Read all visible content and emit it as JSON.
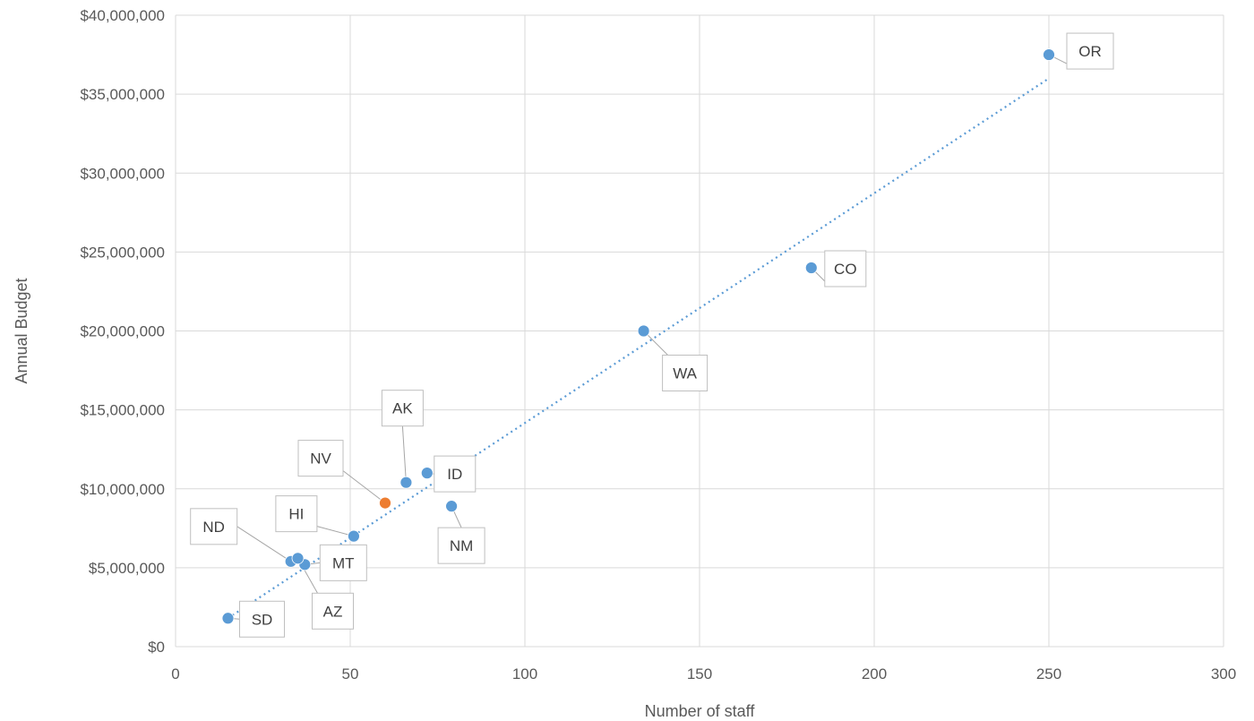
{
  "chart_data": {
    "type": "scatter",
    "xlabel": "Number of staff",
    "ylabel": "Annual Budget",
    "xlim": [
      0,
      300
    ],
    "ylim": [
      0,
      40000000
    ],
    "x_ticks": [
      "0",
      "50",
      "100",
      "150",
      "200",
      "250",
      "300"
    ],
    "y_ticks": [
      "$0",
      "$5,000,000",
      "$10,000,000",
      "$15,000,000",
      "$20,000,000",
      "$25,000,000",
      "$30,000,000",
      "$35,000,000",
      "$40,000,000"
    ],
    "grid": true,
    "trendline": {
      "type": "linear",
      "style": "dotted",
      "color": "#5b9bd5",
      "x_range": [
        15,
        250
      ],
      "y_range": [
        1800000,
        36000000
      ]
    },
    "points": [
      {
        "label": "OR",
        "x": 250,
        "y": 37500000,
        "color": "#5b9bd5"
      },
      {
        "label": "CO",
        "x": 182,
        "y": 24000000,
        "color": "#5b9bd5"
      },
      {
        "label": "WA",
        "x": 134,
        "y": 20000000,
        "color": "#5b9bd5"
      },
      {
        "label": "AK",
        "x": 66,
        "y": 10400000,
        "color": "#5b9bd5"
      },
      {
        "label": "ID",
        "x": 72,
        "y": 11000000,
        "color": "#5b9bd5"
      },
      {
        "label": "NV",
        "x": 60,
        "y": 9100000,
        "color": "#ed7d31"
      },
      {
        "label": "NM",
        "x": 79,
        "y": 8900000,
        "color": "#5b9bd5"
      },
      {
        "label": "HI",
        "x": 51,
        "y": 7000000,
        "color": "#5b9bd5"
      },
      {
        "label": "ND",
        "x": 33,
        "y": 5400000,
        "color": "#5b9bd5"
      },
      {
        "label": "MT",
        "x": 37,
        "y": 5200000,
        "color": "#5b9bd5"
      },
      {
        "label": "AZ",
        "x": 35,
        "y": 5600000,
        "color": "#5b9bd5"
      },
      {
        "label": "SD",
        "x": 15,
        "y": 1800000,
        "color": "#5b9bd5"
      }
    ]
  }
}
